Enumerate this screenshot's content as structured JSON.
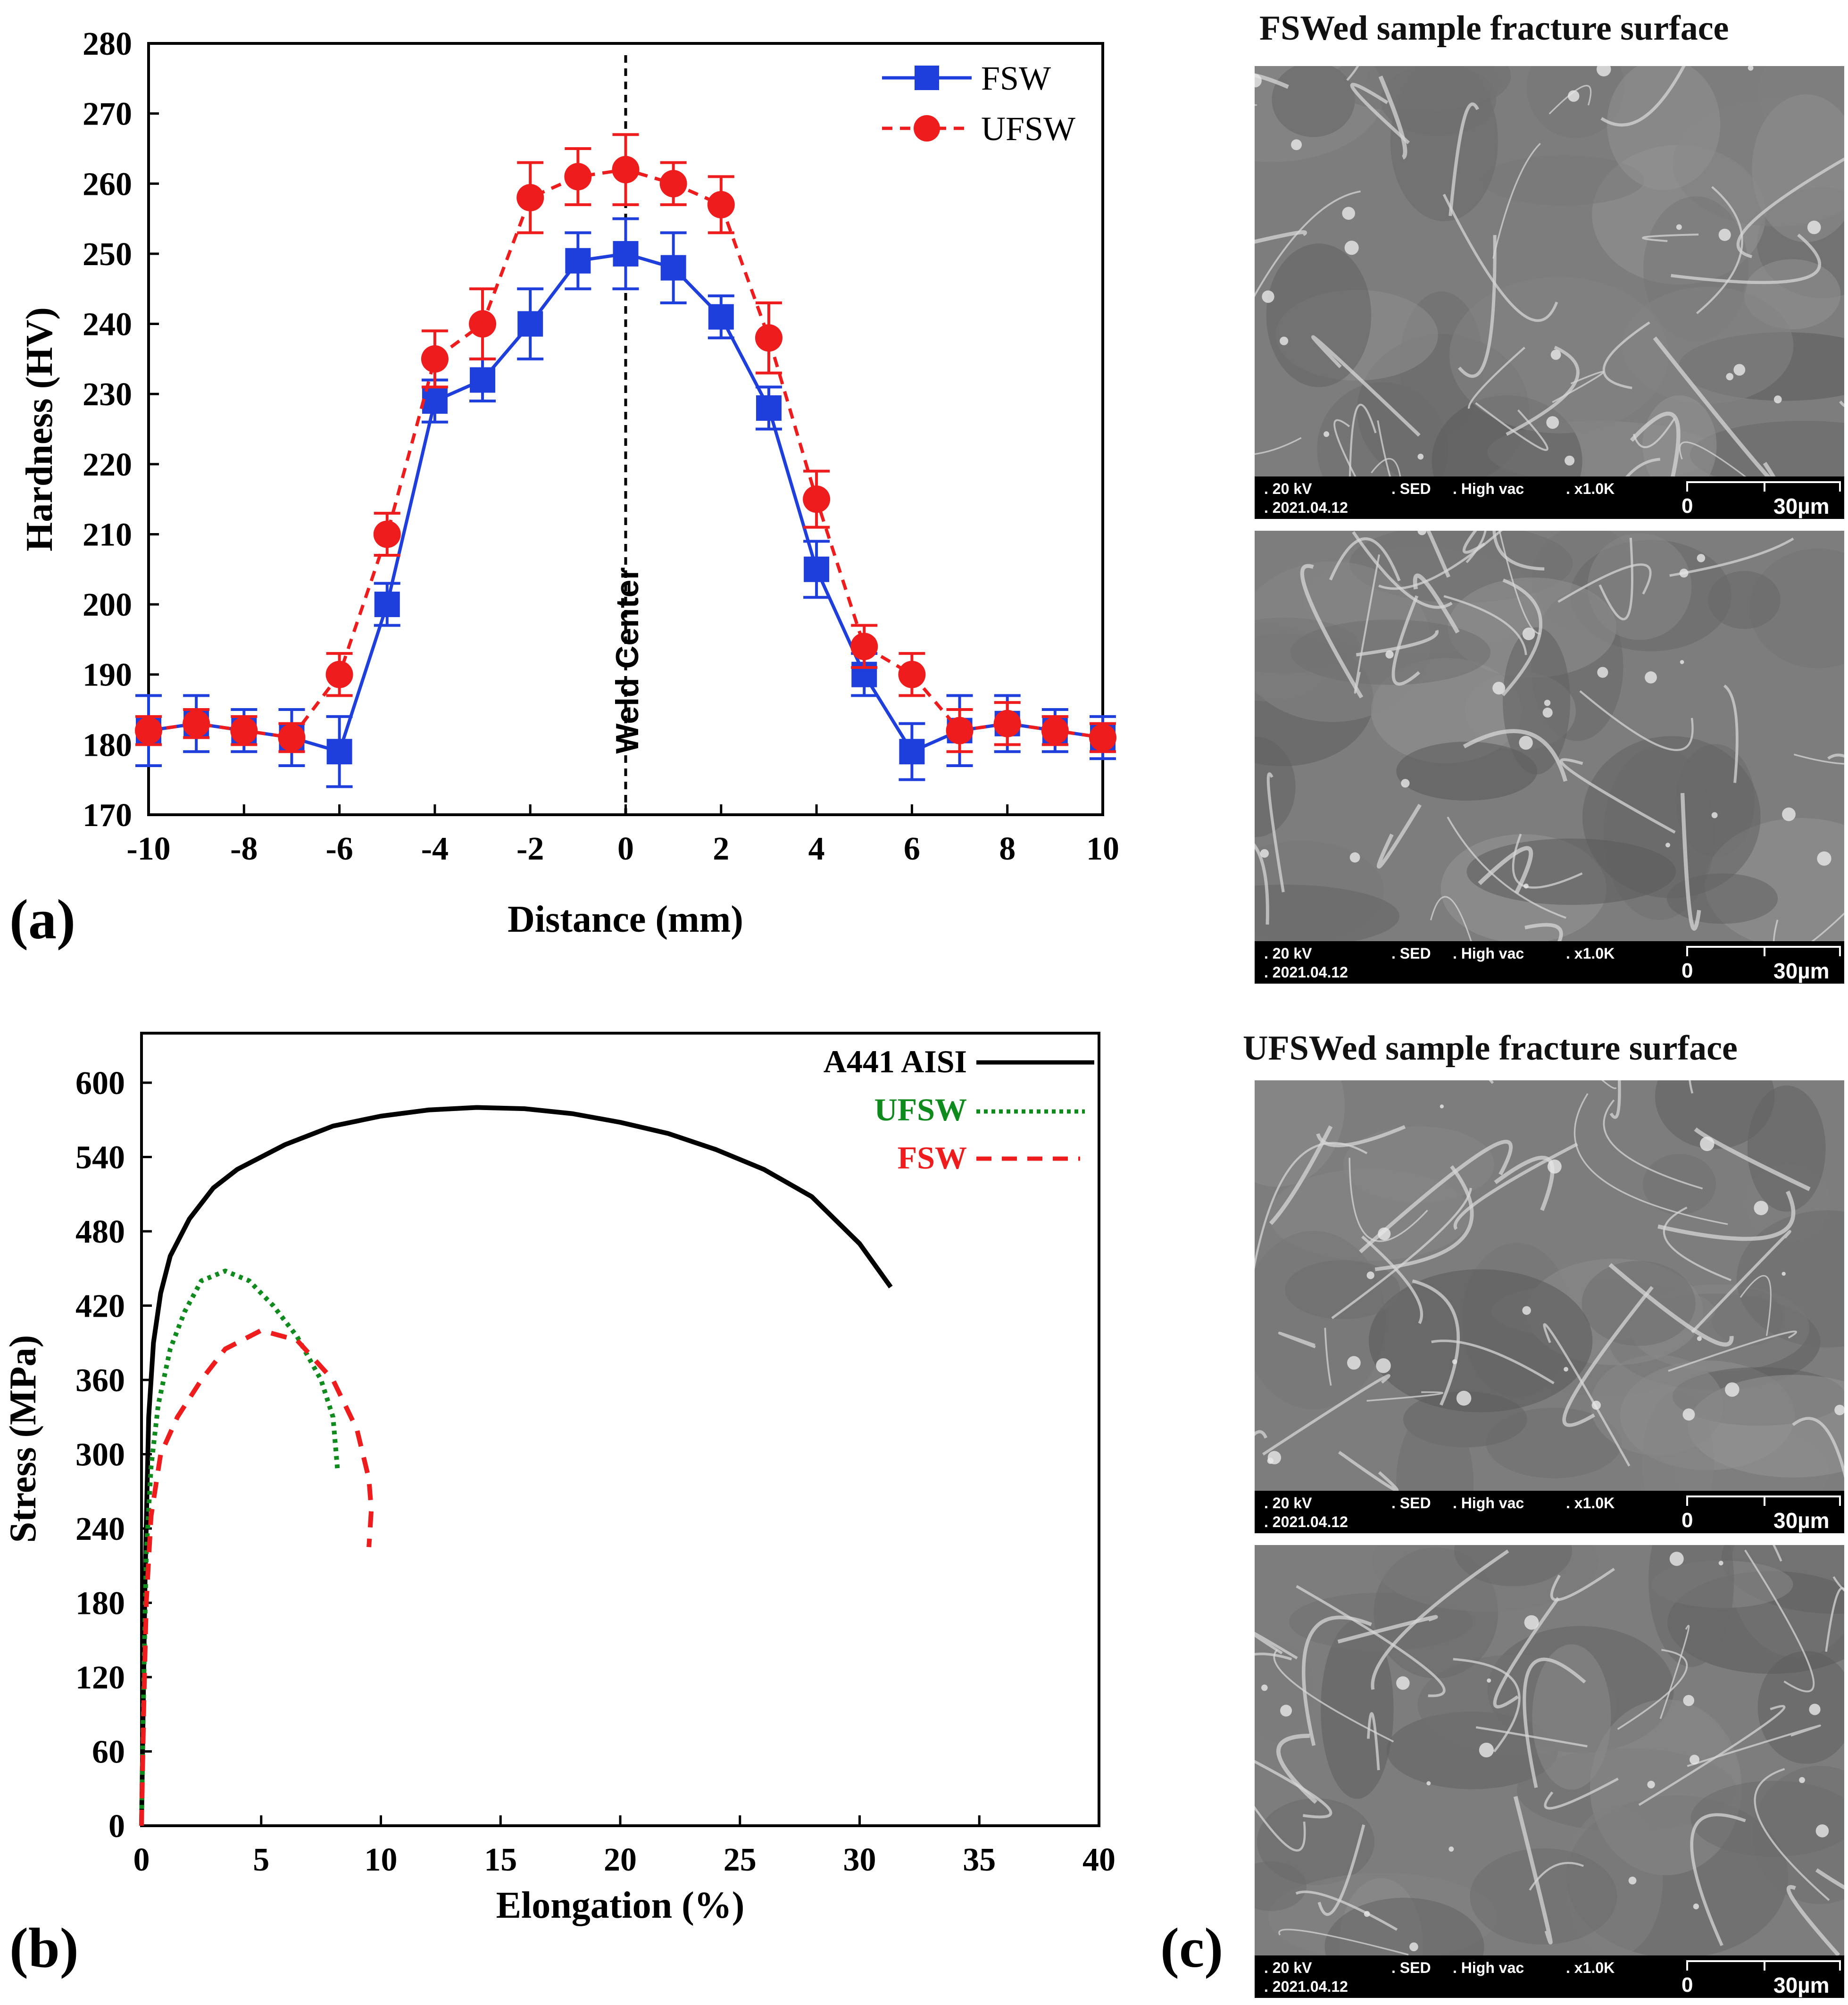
{
  "figure_labels": {
    "a": "(a)",
    "b": "(b)",
    "c": "(c)"
  },
  "chart_data": [
    {
      "type": "line",
      "panel": "(a)",
      "xlabel": "Distance (mm)",
      "ylabel": "Hardness (HV)",
      "xlim": [
        -10,
        10
      ],
      "ylim": [
        170,
        280
      ],
      "xticks": [
        -10,
        -8,
        -6,
        -4,
        -2,
        0,
        2,
        4,
        6,
        8,
        10
      ],
      "yticks": [
        170,
        180,
        190,
        200,
        210,
        220,
        230,
        240,
        250,
        260,
        270,
        280
      ],
      "annotation": "Weld Center",
      "legend_position": "top-right",
      "x": [
        -10,
        -9,
        -8,
        -7,
        -6,
        -5,
        -4,
        -3,
        -2,
        -1,
        0,
        1,
        2,
        3,
        4,
        5,
        6,
        7,
        8,
        9,
        10
      ],
      "series": [
        {
          "name": "FSW",
          "color": "#1f3fdc",
          "style": "solid",
          "marker": "square",
          "values": [
            182,
            183,
            182,
            181,
            179,
            200,
            229,
            232,
            240,
            249,
            250,
            248,
            241,
            228,
            205,
            190,
            179,
            182,
            183,
            182,
            181
          ],
          "errors": [
            5,
            4,
            3,
            4,
            5,
            3,
            3,
            3,
            5,
            4,
            5,
            5,
            3,
            3,
            4,
            3,
            4,
            5,
            4,
            3,
            3
          ]
        },
        {
          "name": "UFSW",
          "color": "#ee1c1c",
          "style": "dashed",
          "marker": "circle",
          "values": [
            182,
            183,
            182,
            181,
            190,
            210,
            235,
            240,
            258,
            261,
            262,
            260,
            257,
            238,
            215,
            194,
            190,
            182,
            183,
            182,
            181
          ],
          "errors": [
            2,
            2,
            2,
            2,
            3,
            3,
            4,
            5,
            5,
            4,
            5,
            3,
            4,
            5,
            4,
            3,
            3,
            3,
            3,
            2,
            2
          ]
        }
      ]
    },
    {
      "type": "line",
      "panel": "(b)",
      "xlabel": "Elongation (%)",
      "ylabel": "Stress (MPa)",
      "xlim": [
        0,
        40
      ],
      "ylim": [
        0,
        640
      ],
      "xticks": [
        0,
        5,
        10,
        15,
        20,
        25,
        30,
        35,
        40
      ],
      "yticks": [
        0,
        60,
        120,
        180,
        240,
        300,
        360,
        420,
        480,
        540,
        600
      ],
      "legend_position": "top-right",
      "series": [
        {
          "name": "A441 AISI",
          "color": "#000000",
          "style": "solid",
          "points": [
            [
              0,
              0
            ],
            [
              0.15,
              200
            ],
            [
              0.3,
              330
            ],
            [
              0.5,
              390
            ],
            [
              0.8,
              430
            ],
            [
              1.2,
              460
            ],
            [
              2,
              490
            ],
            [
              3,
              515
            ],
            [
              4,
              530
            ],
            [
              6,
              550
            ],
            [
              8,
              565
            ],
            [
              10,
              573
            ],
            [
              12,
              578
            ],
            [
              14,
              580
            ],
            [
              16,
              579
            ],
            [
              18,
              575
            ],
            [
              20,
              568
            ],
            [
              22,
              559
            ],
            [
              24,
              546
            ],
            [
              26,
              530
            ],
            [
              28,
              508
            ],
            [
              30,
              470
            ],
            [
              31.3,
              435
            ]
          ]
        },
        {
          "name": "UFSW",
          "color": "#0f8a1c",
          "style": "dotted",
          "points": [
            [
              0,
              0
            ],
            [
              0.1,
              120
            ],
            [
              0.2,
              220
            ],
            [
              0.4,
              290
            ],
            [
              0.7,
              340
            ],
            [
              1.2,
              385
            ],
            [
              1.8,
              415
            ],
            [
              2.5,
              440
            ],
            [
              3.5,
              448
            ],
            [
              4.5,
              440
            ],
            [
              5.5,
              420
            ],
            [
              6.5,
              395
            ],
            [
              7.5,
              360
            ],
            [
              8,
              330
            ],
            [
              8.2,
              285
            ]
          ]
        },
        {
          "name": "FSW",
          "color": "#ee1c1c",
          "style": "dashed",
          "points": [
            [
              0,
              0
            ],
            [
              0.1,
              100
            ],
            [
              0.2,
              180
            ],
            [
              0.4,
              250
            ],
            [
              0.8,
              300
            ],
            [
              1.5,
              330
            ],
            [
              2.5,
              360
            ],
            [
              3.5,
              385
            ],
            [
              5,
              400
            ],
            [
              6.5,
              392
            ],
            [
              8,
              360
            ],
            [
              9,
              320
            ],
            [
              9.5,
              280
            ],
            [
              9.6,
              255
            ],
            [
              9.5,
              225
            ]
          ]
        }
      ]
    }
  ],
  "sem": {
    "title_fsw": "FSWed sample fracture surface",
    "title_ufsw": "UFSWed sample fracture surface",
    "images": [
      {
        "kv": ". 20 kV",
        "sed": ". SED",
        "vac": ". High vac",
        "mag": ". x1.0K",
        "date": ". 2021.04.12",
        "zero": "0",
        "scale": "30µm"
      },
      {
        "kv": ". 20 kV",
        "sed": ". SED",
        "vac": ". High vac",
        "mag": ". x1.0K",
        "date": ". 2021.04.12",
        "zero": "0",
        "scale": "30µm"
      },
      {
        "kv": ". 20 kV",
        "sed": ". SED",
        "vac": ". High vac",
        "mag": ". x1.0K",
        "date": ". 2021.04.12",
        "zero": "0",
        "scale": "30µm"
      },
      {
        "kv": ". 20 kV",
        "sed": ". SED",
        "vac": ". High vac",
        "mag": ". x1.0K",
        "date": ". 2021.04.12",
        "zero": "0",
        "scale": "30µm"
      }
    ]
  }
}
